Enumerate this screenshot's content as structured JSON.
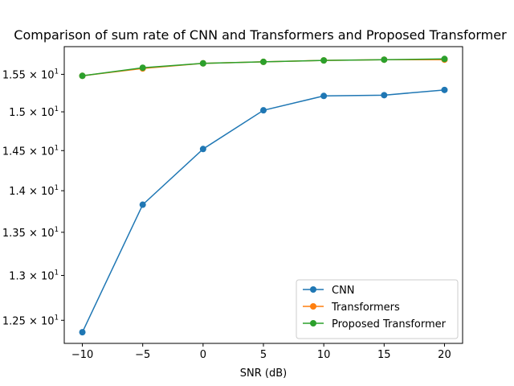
{
  "chart_data": {
    "type": "line",
    "title": "Comparison of sum rate of CNN and Transformers and Proposed Transformer",
    "xlabel": "SNR (dB)",
    "ylabel": "",
    "x": [
      -10,
      -5,
      0,
      5,
      10,
      15,
      20
    ],
    "x_ticks": [
      "−10",
      "−5",
      "0",
      "5",
      "10",
      "15",
      "20"
    ],
    "y_scale": "log",
    "y_ticks": [
      {
        "value": 12.5,
        "mantissa": "1.25",
        "base": "10",
        "exp": "1"
      },
      {
        "value": 13.0,
        "mantissa": "1.3",
        "base": "10",
        "exp": "1"
      },
      {
        "value": 13.5,
        "mantissa": "1.35",
        "base": "10",
        "exp": "1"
      },
      {
        "value": 14.0,
        "mantissa": "1.4",
        "base": "10",
        "exp": "1"
      },
      {
        "value": 14.5,
        "mantissa": "1.45",
        "base": "10",
        "exp": "1"
      },
      {
        "value": 15.0,
        "mantissa": "1.5",
        "base": "10",
        "exp": "1"
      },
      {
        "value": 15.5,
        "mantissa": "1.55",
        "base": "10",
        "exp": "1"
      }
    ],
    "xlim": [
      -11.5,
      21.5
    ],
    "ylim": [
      12.25,
      15.88
    ],
    "grid": false,
    "legend_position": "lower-right",
    "series": [
      {
        "name": "CNN",
        "color": "#1f77b4",
        "values": [
          12.37,
          13.83,
          14.52,
          15.02,
          15.21,
          15.22,
          15.29
        ]
      },
      {
        "name": "Transformers",
        "color": "#ff7f0e",
        "values": [
          15.48,
          15.58,
          15.65,
          15.67,
          15.69,
          15.7,
          15.7
        ]
      },
      {
        "name": "Proposed Transformer",
        "color": "#2ca02c",
        "values": [
          15.48,
          15.59,
          15.65,
          15.67,
          15.69,
          15.7,
          15.71
        ]
      }
    ]
  }
}
